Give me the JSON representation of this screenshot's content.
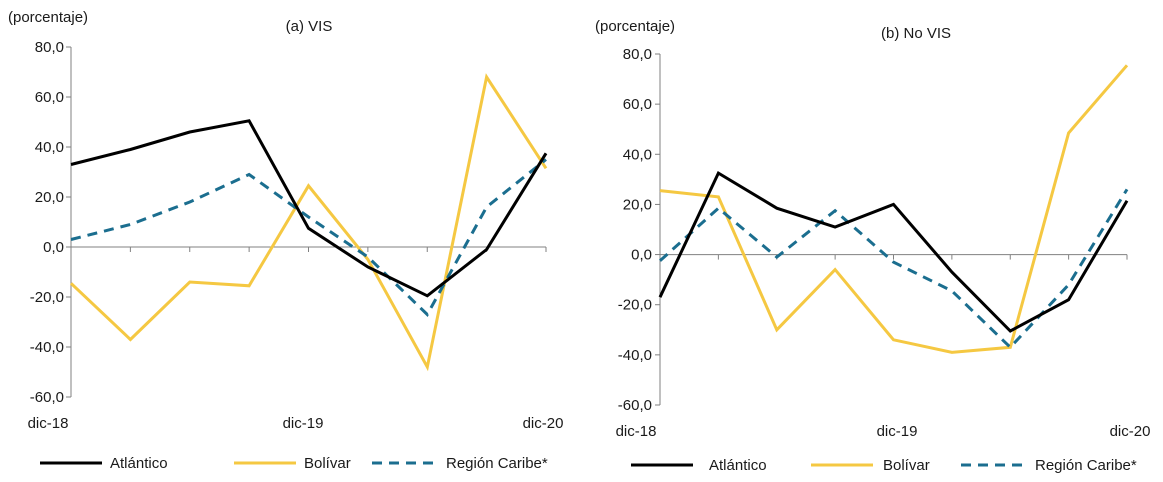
{
  "colors": {
    "atlantico": "#000000",
    "bolivar": "#F5C842",
    "region_caribe": "#1B6E8F",
    "axis": "#808080"
  },
  "legend": [
    {
      "label": "Atlántico",
      "style": "solid",
      "color": "#000000"
    },
    {
      "label": "Bolívar",
      "style": "solid",
      "color": "#F5C842"
    },
    {
      "label": "Región Caribe*",
      "style": "dashed",
      "color": "#1B6E8F"
    }
  ],
  "chart_data": [
    {
      "type": "line",
      "title": "(a) VIS",
      "ylabel": "(porcentaje)",
      "ylim": [
        -60,
        80
      ],
      "yticks": [
        80,
        60,
        40,
        20,
        0,
        -20,
        -40,
        -60
      ],
      "ytick_labels": [
        "80,0",
        "60,0",
        "40,0",
        "20,0",
        "0,0",
        "-20,0",
        "-40,0",
        "-60,0"
      ],
      "x_labels": [
        "dic-18",
        "dic-19",
        "dic-20"
      ],
      "x_label_positions": [
        0,
        4,
        8
      ],
      "grid": false,
      "legend_position": "bottom",
      "series": [
        {
          "name": "Atlántico",
          "key": "atlantico",
          "dash": false,
          "values": [
            33,
            39,
            46,
            50.5,
            7.5,
            -8,
            -19.5,
            -1,
            37.5
          ]
        },
        {
          "name": "Bolívar",
          "key": "bolivar",
          "dash": false,
          "values": [
            -14.5,
            -37,
            -14,
            -15.5,
            24.5,
            -5,
            -48,
            68,
            31.5
          ]
        },
        {
          "name": "Región Caribe*",
          "key": "region_caribe",
          "dash": true,
          "values": [
            3,
            9,
            18,
            29,
            12,
            -4,
            -27,
            16,
            35
          ]
        }
      ]
    },
    {
      "type": "line",
      "title": "(b) No VIS",
      "ylabel": "(porcentaje)",
      "ylim": [
        -60,
        80
      ],
      "yticks": [
        80,
        60,
        40,
        20,
        0,
        -20,
        -40,
        -60
      ],
      "ytick_labels": [
        "80,0",
        "60,0",
        "40,0",
        "20,0",
        "0,0",
        "-20,0",
        "-40,0",
        "-60,0"
      ],
      "x_labels": [
        "dic-18",
        "dic-19",
        "dic-20"
      ],
      "x_label_positions": [
        0,
        4,
        8
      ],
      "grid": false,
      "legend_position": "bottom",
      "series": [
        {
          "name": "Atlántico",
          "key": "atlantico",
          "dash": false,
          "values": [
            -17,
            32.5,
            18.5,
            11,
            20,
            -7,
            -30.5,
            -18,
            21.5
          ]
        },
        {
          "name": "Bolívar",
          "key": "bolivar",
          "dash": false,
          "values": [
            25.5,
            23,
            -30,
            -6,
            -34,
            -39,
            -37,
            48.5,
            75.5
          ]
        },
        {
          "name": "Región Caribe*",
          "key": "region_caribe",
          "dash": true,
          "values": [
            -2.5,
            18.5,
            -1,
            17.5,
            -3,
            -14.5,
            -37,
            -12,
            26
          ]
        }
      ]
    }
  ]
}
